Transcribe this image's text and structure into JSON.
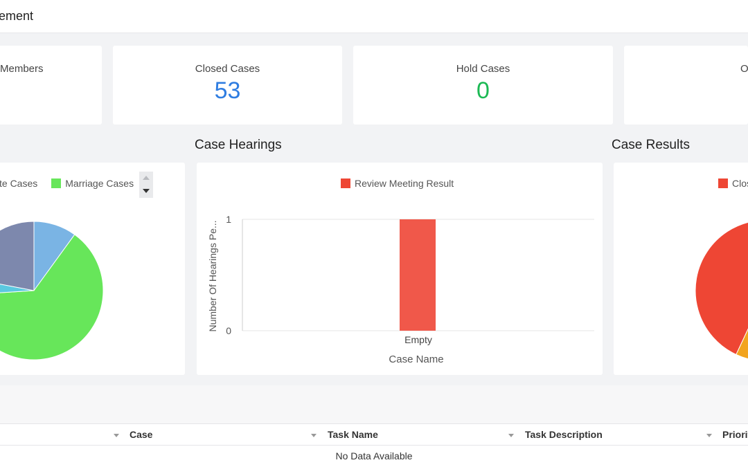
{
  "header": {
    "title": "ement"
  },
  "stats": [
    {
      "label": "Members",
      "value": ""
    },
    {
      "label": "Closed Cases",
      "value": "53",
      "color": "#2f7de1"
    },
    {
      "label": "Hold Cases",
      "value": "0",
      "color": "#1cb954"
    },
    {
      "label": "O",
      "value": ""
    }
  ],
  "sections": {
    "case_hearings": "Case Hearings",
    "case_results": "Case Results"
  },
  "case_types": {
    "legend": [
      {
        "label": "te Cases",
        "color": "#5bc8e0"
      },
      {
        "label": "Marriage Cases",
        "color": "#67e65a"
      }
    ]
  },
  "case_results": {
    "legend": [
      {
        "label": "Clos",
        "color": "#ee4634"
      }
    ]
  },
  "chart_data": [
    {
      "type": "pie",
      "title": "",
      "slices": [
        {
          "label": "",
          "value": 10,
          "color": "#7ab4e4"
        },
        {
          "label": "Marriage Cases",
          "value": 64,
          "color": "#67e65a"
        },
        {
          "label": "",
          "value": 4,
          "color": "#5bc8e0"
        },
        {
          "label": "",
          "value": 22,
          "color": "#7d88ad"
        }
      ]
    },
    {
      "type": "bar",
      "title": "",
      "categories": [
        "Empty"
      ],
      "series": [
        {
          "name": "Review Meeting Result",
          "values": [
            1
          ],
          "color": "#f0584a"
        }
      ],
      "xlabel": "Case Name",
      "ylabel": "Number Of Hearings Pe...",
      "ylim": [
        0,
        1
      ],
      "yticks": [
        "1",
        "0"
      ]
    },
    {
      "type": "pie",
      "title": "",
      "slices": [
        {
          "label": "Clos",
          "value": 55,
          "color": "#ee4634"
        },
        {
          "label": "",
          "value": 12,
          "color": "#f2a41e"
        }
      ]
    }
  ],
  "tasks_table": {
    "columns": [
      "Case",
      "Task Name",
      "Task Description",
      "Priorit"
    ],
    "empty_text": "No Data Available"
  }
}
